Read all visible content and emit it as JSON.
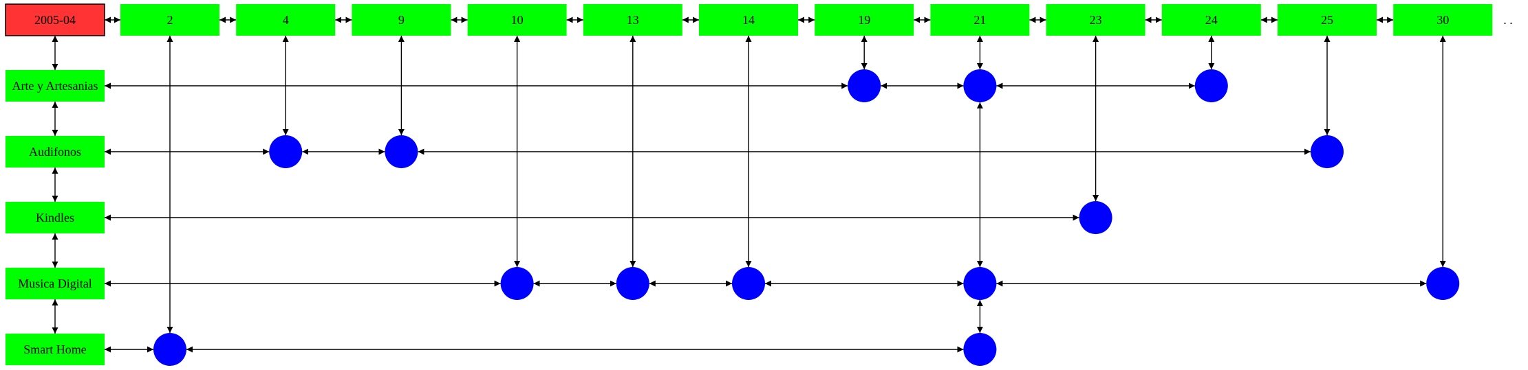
{
  "diagram": {
    "header": {
      "label": "2005-04",
      "color": "#ff3333"
    },
    "days": [
      "2",
      "4",
      "9",
      "10",
      "13",
      "14",
      "19",
      "21",
      "23",
      "24",
      "25",
      "30"
    ],
    "ellipsis": ". .",
    "categories": [
      "Arte y Artesanias",
      "Audifonos",
      "Kindles",
      "Musica Digital",
      "Smart Home"
    ],
    "node_color": "#0000ff",
    "box_color": "#00ff00",
    "events": [
      {
        "category": "Arte y Artesanias",
        "days": [
          "19",
          "21",
          "24"
        ]
      },
      {
        "category": "Audifonos",
        "days": [
          "4",
          "9",
          "25"
        ]
      },
      {
        "category": "Kindles",
        "days": [
          "23"
        ]
      },
      {
        "category": "Musica Digital",
        "days": [
          "10",
          "13",
          "14",
          "21",
          "30"
        ]
      },
      {
        "category": "Smart Home",
        "days": [
          "2",
          "21"
        ]
      }
    ]
  }
}
